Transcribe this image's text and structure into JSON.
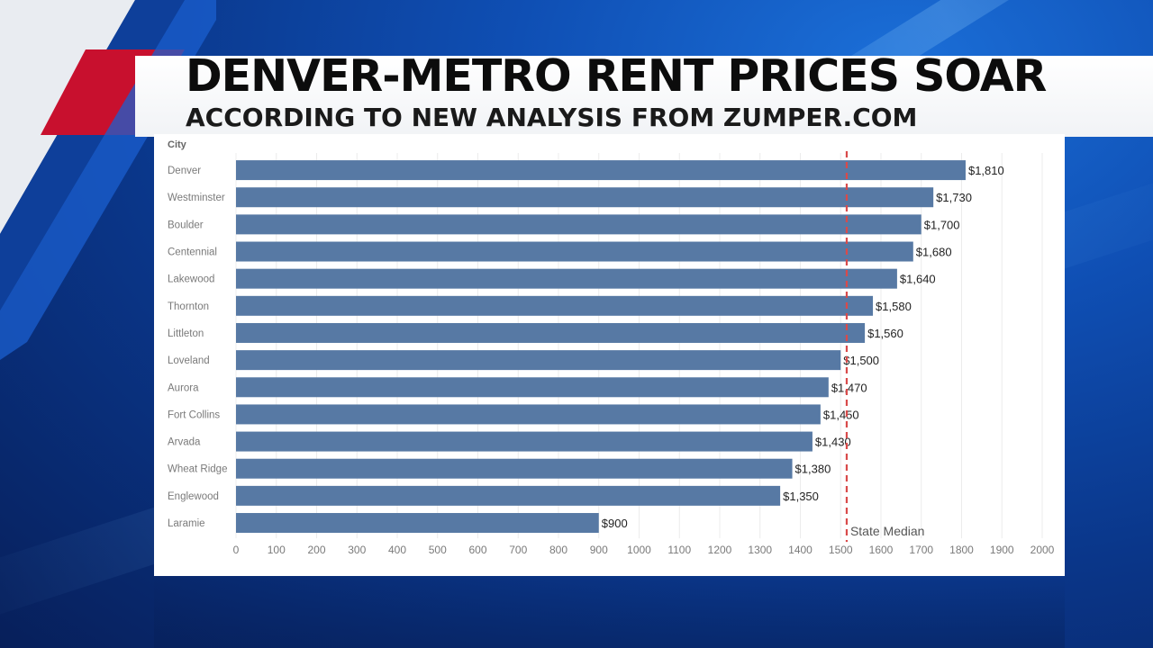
{
  "headline": {
    "title": "DENVER-METRO RENT PRICES SOAR",
    "subtitle": "ACCORDING TO NEW ANALYSIS FROM ZUMPER.COM"
  },
  "colors": {
    "bar": "#5779a4",
    "median_line": "#d94a4a",
    "brand_red": "#c8102e",
    "brand_blue": "#0a3689"
  },
  "chart_data": {
    "type": "bar",
    "orientation": "horizontal",
    "category_header": "City",
    "categories": [
      "Denver",
      "Westminster",
      "Boulder",
      "Centennial",
      "Lakewood",
      "Thornton",
      "Littleton",
      "Loveland",
      "Aurora",
      "Fort Collins",
      "Arvada",
      "Wheat Ridge",
      "Englewood",
      "Laramie"
    ],
    "values": [
      1810,
      1730,
      1700,
      1680,
      1640,
      1580,
      1560,
      1500,
      1470,
      1450,
      1430,
      1380,
      1350,
      900
    ],
    "value_labels": [
      "$1,810",
      "$1,730",
      "$1,700",
      "$1,680",
      "$1,640",
      "$1,580",
      "$1,560",
      "$1,500",
      "$1,470",
      "$1,450",
      "$1,430",
      "$1,380",
      "$1,350",
      "$900"
    ],
    "xticks": [
      0,
      100,
      200,
      300,
      400,
      500,
      600,
      700,
      800,
      900,
      1000,
      1100,
      1200,
      1300,
      1400,
      1500,
      1600,
      1700,
      1800,
      1900,
      2000
    ],
    "xlim": [
      0,
      2000
    ],
    "grid": "vertical",
    "reference_line": {
      "label": "State Median",
      "value": 1515
    }
  }
}
